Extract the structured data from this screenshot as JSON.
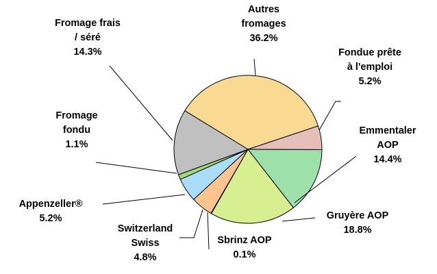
{
  "chart_data": {
    "type": "pie",
    "categories": [
      "Autres\nfromages",
      "Fondue prête\nà l'emploi",
      "Emmentaler\nAOP",
      "Gruyère AOP",
      "Sbrinz AOP",
      "Switzerland\nSwiss",
      "Appenzeller®",
      "Fromage\nfondu",
      "Fromage frais\n/ séré"
    ],
    "values": [
      36.2,
      5.2,
      14.4,
      18.8,
      0.1,
      4.8,
      5.2,
      1.1,
      14.3
    ],
    "value_labels": [
      "36.2%",
      "5.2%",
      "14.4%",
      "18.8%",
      "0.1%",
      "4.8%",
      "5.2%",
      "1.1%",
      "14.3%"
    ],
    "colors": [
      "#fad992",
      "#e6bfb9",
      "#9de0a9",
      "#d7ee91",
      "#c9e7a0",
      "#fbc58d",
      "#a9ddf9",
      "#a1d975",
      "#c0c0c0"
    ]
  }
}
